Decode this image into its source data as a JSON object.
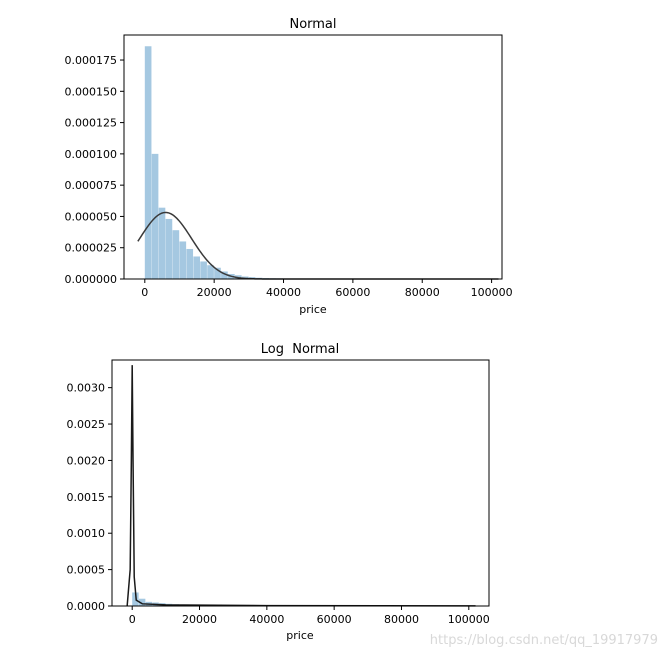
{
  "watermark": "https://blog.csdn.net/qq_19917979",
  "chart_data": [
    {
      "type": "bar",
      "title": "Normal",
      "xlabel": "price",
      "ylabel": "",
      "xlim": [
        -6000,
        103000
      ],
      "ylim": [
        0,
        0.000195
      ],
      "xticks": [
        0,
        20000,
        40000,
        60000,
        80000,
        100000
      ],
      "xtick_labels": [
        "0",
        "20000",
        "40000",
        "60000",
        "80000",
        "100000"
      ],
      "yticks": [
        0,
        2.5e-05,
        5e-05,
        7.5e-05,
        0.0001,
        0.000125,
        0.00015,
        0.000175
      ],
      "ytick_labels": [
        "0.000000",
        "0.000025",
        "0.000050",
        "0.000075",
        "0.000100",
        "0.000125",
        "0.000150",
        "0.000175"
      ],
      "grid": false,
      "hist_bin_width": 2000,
      "hist_bin_start": 0,
      "hist_values": [
        0.000186,
        0.0001,
        5.7e-05,
        4.8e-05,
        3.9e-05,
        3e-05,
        2.4e-05,
        1.8e-05,
        1.4e-05,
        1.1e-05,
        9e-06,
        6e-06,
        4e-06,
        3e-06,
        2e-06,
        1.5e-06,
        1e-06,
        8e-07,
        6e-07,
        5e-07,
        4e-07,
        3e-07,
        3e-07,
        2e-07,
        2e-07,
        2e-07,
        1e-07,
        1e-07,
        1e-07,
        1e-07,
        1e-07,
        1e-07,
        1e-07,
        1e-07,
        1e-07,
        1e-07,
        1e-07,
        1e-07,
        1e-07,
        1e-07,
        1e-07,
        1e-07,
        1e-07,
        1e-07,
        1e-07,
        1e-07,
        1e-07,
        1e-07,
        1e-07,
        1e-07
      ],
      "fit_curve": {
        "distribution": "normal",
        "mean": 6000,
        "sd": 7500,
        "x_range": [
          -2000,
          102000
        ]
      },
      "colors": {
        "bars": "#a5c8e1",
        "curve": "#3a3a3a"
      }
    },
    {
      "type": "bar",
      "title": "Log  Normal",
      "xlabel": "price",
      "ylabel": "",
      "xlim": [
        -6000,
        106000
      ],
      "ylim": [
        0,
        0.00338
      ],
      "xticks": [
        0,
        20000,
        40000,
        60000,
        80000,
        100000
      ],
      "xtick_labels": [
        "0",
        "20000",
        "40000",
        "60000",
        "80000",
        "100000"
      ],
      "yticks": [
        0,
        0.0005,
        0.001,
        0.0015,
        0.002,
        0.0025,
        0.003
      ],
      "ytick_labels": [
        "0.0000",
        "0.0005",
        "0.0010",
        "0.0015",
        "0.0020",
        "0.0025",
        "0.0030"
      ],
      "grid": false,
      "hist_bin_width": 2000,
      "hist_bin_start": 0,
      "hist_values": [
        0.000186,
        0.0001,
        5.7e-05,
        4.8e-05,
        3.9e-05,
        3e-05,
        2.4e-05,
        1.8e-05,
        1.4e-05,
        1.1e-05,
        9e-06,
        6e-06,
        4e-06,
        3e-06,
        2e-06,
        1.5e-06,
        1e-06,
        8e-07,
        6e-07,
        5e-07,
        4e-07,
        3e-07,
        3e-07,
        2e-07,
        2e-07,
        2e-07,
        1e-07,
        1e-07,
        1e-07,
        1e-07,
        1e-07,
        1e-07,
        1e-07,
        1e-07,
        1e-07,
        1e-07,
        1e-07,
        1e-07,
        1e-07,
        1e-07,
        1e-07,
        1e-07,
        1e-07,
        1e-07,
        1e-07,
        1e-07,
        1e-07,
        1e-07,
        1e-07,
        1e-07
      ],
      "fit_curve": {
        "distribution": "lognormal",
        "peak_x": 0,
        "peak_y": 0.00331,
        "points": [
          [
            -1500,
            0
          ],
          [
            -600,
            0.0005
          ],
          [
            -250,
            0.002
          ],
          [
            0,
            0.00331
          ],
          [
            250,
            0.002
          ],
          [
            600,
            0.0004
          ],
          [
            1200,
            8e-05
          ],
          [
            3000,
            3e-05
          ],
          [
            10000,
            1.5e-05
          ],
          [
            40000,
            5e-06
          ],
          [
            102000,
            2e-06
          ]
        ]
      },
      "colors": {
        "bars": "#a5c8e1",
        "curve": "#1a1a1a"
      }
    }
  ]
}
